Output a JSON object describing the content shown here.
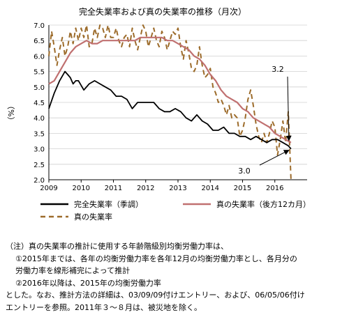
{
  "chart_data": {
    "type": "line",
    "title": "完全失業率および真の失業率の推移（月次）",
    "ylabel": "（%）",
    "xlabel": "",
    "ylim": [
      2.0,
      7.0
    ],
    "yticks": [
      "2.0",
      "2.5",
      "3.0",
      "3.5",
      "4.0",
      "4.5",
      "5.0",
      "5.5",
      "6.0",
      "6.5",
      "7.0"
    ],
    "xlim": [
      "2009-01",
      "2016-12"
    ],
    "xticks": [
      "2009",
      "2010",
      "2011",
      "2012",
      "2013",
      "2014",
      "2015",
      "2016"
    ],
    "grid": "horizontal",
    "legend_position": "bottom",
    "colors": {
      "seasonal": "#000000",
      "true12": "#c07070",
      "true": "#9c6b2a"
    },
    "series": [
      {
        "name": "完全失業率（季調）",
        "key": "seasonal",
        "style": "solid",
        "x": [
          "2009-01",
          "2009-03",
          "2009-05",
          "2009-07",
          "2009-08",
          "2009-09",
          "2009-10",
          "2009-11",
          "2009-12",
          "2010-02",
          "2010-04",
          "2010-06",
          "2010-08",
          "2010-10",
          "2010-12",
          "2011-02",
          "2011-04",
          "2011-06",
          "2011-08",
          "2011-10",
          "2011-12",
          "2012-02",
          "2012-04",
          "2012-06",
          "2012-08",
          "2012-10",
          "2012-12",
          "2013-02",
          "2013-04",
          "2013-06",
          "2013-08",
          "2013-10",
          "2013-12",
          "2014-02",
          "2014-04",
          "2014-06",
          "2014-08",
          "2014-10",
          "2014-12",
          "2015-02",
          "2015-04",
          "2015-06",
          "2015-08",
          "2015-10",
          "2015-12",
          "2016-02",
          "2016-04",
          "2016-06",
          "2016-07"
        ],
        "values": [
          4.3,
          4.8,
          5.2,
          5.5,
          5.4,
          5.3,
          5.1,
          5.2,
          5.2,
          4.9,
          5.1,
          5.2,
          5.1,
          5.0,
          4.9,
          4.7,
          4.7,
          4.6,
          4.3,
          4.5,
          4.5,
          4.5,
          4.5,
          4.3,
          4.2,
          4.2,
          4.3,
          4.2,
          4.0,
          3.9,
          4.1,
          3.9,
          3.8,
          3.6,
          3.6,
          3.7,
          3.5,
          3.5,
          3.4,
          3.4,
          3.3,
          3.4,
          3.3,
          3.2,
          3.3,
          3.3,
          3.2,
          3.1,
          3.0
        ]
      },
      {
        "name": "真の失業率（後方12カ月）",
        "key": "true12",
        "style": "solid",
        "x": [
          "2009-01",
          "2009-03",
          "2009-05",
          "2009-07",
          "2009-09",
          "2009-11",
          "2010-01",
          "2010-03",
          "2010-05",
          "2010-07",
          "2010-09",
          "2010-11",
          "2011-01",
          "2011-03",
          "2011-05",
          "2011-07",
          "2011-09",
          "2011-11",
          "2012-01",
          "2012-03",
          "2012-05",
          "2012-07",
          "2012-09",
          "2012-11",
          "2013-01",
          "2013-03",
          "2013-05",
          "2013-07",
          "2013-09",
          "2013-11",
          "2014-01",
          "2014-03",
          "2014-05",
          "2014-07",
          "2014-09",
          "2014-11",
          "2015-01",
          "2015-03",
          "2015-05",
          "2015-07",
          "2015-09",
          "2015-11",
          "2016-01",
          "2016-03",
          "2016-05",
          "2016-07"
        ],
        "values": [
          5.1,
          5.2,
          5.5,
          5.8,
          6.1,
          6.3,
          6.4,
          6.5,
          6.4,
          6.4,
          6.5,
          6.5,
          6.5,
          6.5,
          6.5,
          6.5,
          6.5,
          6.6,
          6.6,
          6.6,
          6.6,
          6.6,
          6.5,
          6.5,
          6.4,
          6.3,
          6.2,
          6.0,
          5.9,
          5.7,
          5.4,
          5.2,
          4.9,
          4.7,
          4.6,
          4.5,
          4.3,
          4.2,
          4.0,
          3.9,
          3.8,
          3.7,
          3.5,
          3.4,
          3.3,
          3.2
        ]
      },
      {
        "name": "真の失業率",
        "key": "true",
        "style": "dashed",
        "x": [
          "2009-01",
          "2009-02",
          "2009-03",
          "2009-04",
          "2009-05",
          "2009-06",
          "2009-07",
          "2009-08",
          "2009-09",
          "2009-10",
          "2009-11",
          "2009-12",
          "2010-01",
          "2010-02",
          "2010-03",
          "2010-04",
          "2010-05",
          "2010-06",
          "2010-07",
          "2010-08",
          "2010-09",
          "2010-10",
          "2010-11",
          "2010-12",
          "2011-01",
          "2011-02",
          "2011-03",
          "2011-04",
          "2011-05",
          "2011-06",
          "2011-07",
          "2011-08",
          "2011-09",
          "2011-10",
          "2011-11",
          "2011-12",
          "2012-01",
          "2012-02",
          "2012-03",
          "2012-04",
          "2012-05",
          "2012-06",
          "2012-07",
          "2012-08",
          "2012-09",
          "2012-10",
          "2012-11",
          "2012-12",
          "2013-01",
          "2013-02",
          "2013-03",
          "2013-04",
          "2013-05",
          "2013-06",
          "2013-07",
          "2013-08",
          "2013-09",
          "2013-10",
          "2013-11",
          "2013-12",
          "2014-01",
          "2014-02",
          "2014-03",
          "2014-04",
          "2014-05",
          "2014-06",
          "2014-07",
          "2014-08",
          "2014-09",
          "2014-10",
          "2014-11",
          "2014-12",
          "2015-01",
          "2015-02",
          "2015-03",
          "2015-04",
          "2015-05",
          "2015-06",
          "2015-07",
          "2015-08",
          "2015-09",
          "2015-10",
          "2015-11",
          "2015-12",
          "2016-01",
          "2016-02",
          "2016-03",
          "2016-04",
          "2016-05",
          "2016-06",
          "2016-07"
        ],
        "values": [
          6.0,
          6.8,
          6.3,
          5.7,
          6.2,
          6.6,
          6.0,
          6.3,
          6.8,
          6.4,
          6.9,
          6.5,
          6.9,
          6.6,
          7.0,
          6.3,
          6.4,
          6.9,
          6.6,
          7.0,
          6.9,
          6.6,
          7.0,
          6.6,
          6.6,
          6.9,
          6.5,
          6.3,
          6.6,
          6.7,
          6.3,
          6.9,
          6.5,
          6.2,
          6.6,
          7.0,
          6.8,
          6.3,
          6.6,
          6.9,
          6.5,
          6.3,
          6.8,
          6.6,
          6.2,
          6.5,
          6.8,
          6.7,
          6.9,
          6.3,
          5.9,
          6.5,
          6.1,
          5.6,
          5.5,
          5.7,
          6.3,
          5.7,
          5.3,
          5.4,
          5.6,
          5.0,
          4.8,
          4.5,
          4.6,
          4.4,
          4.1,
          4.4,
          4.0,
          4.1,
          4.0,
          3.4,
          3.6,
          4.0,
          4.6,
          4.9,
          4.4,
          3.8,
          3.4,
          3.2,
          3.5,
          3.2,
          3.5,
          3.9,
          3.7,
          2.8,
          3.3,
          3.9,
          3.2,
          4.2,
          2.0
        ]
      }
    ],
    "annotations": [
      {
        "text": "3.2",
        "x": "2016-07",
        "y": 3.2
      },
      {
        "text": "3.0",
        "x": "2016-07",
        "y": 3.0
      }
    ]
  },
  "notes": {
    "lines": [
      "（注）真の失業率の推計に使用する年齢階級別均衡労働力率は、",
      "①2015年までは、各年の均衡労働力率を各年12月の均衡労働力率とし、各月分の",
      "労働力率を線形補完によって推計",
      "②2016年以降は、2015年の均衡労働力率",
      "とした。なお、推計方法の詳細は、03/09/09付けエントリー、および、06/05/06付け",
      "エントリーを参照。2011年３～８月は、被災地を除く。"
    ]
  }
}
